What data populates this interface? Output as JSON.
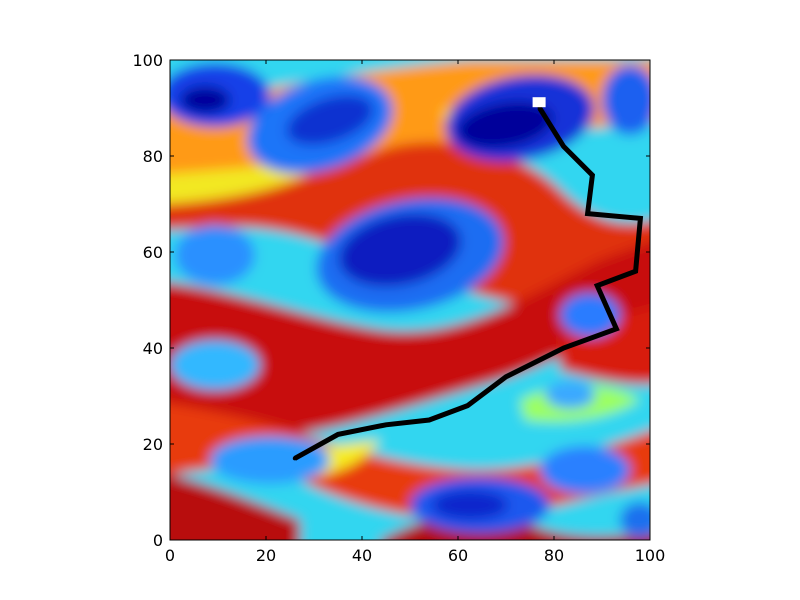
{
  "chart_data": {
    "type": "heatmap",
    "title": "",
    "xlabel": "",
    "ylabel": "",
    "xlim": [
      0,
      100
    ],
    "ylim": [
      0,
      100
    ],
    "colormap": "jet",
    "grid": false,
    "x_ticks": [
      0,
      20,
      40,
      60,
      80,
      100
    ],
    "y_ticks": [
      0,
      20,
      40,
      60,
      80,
      100
    ],
    "path": {
      "color": "#000000",
      "points": [
        [
          26,
          17
        ],
        [
          35,
          22
        ],
        [
          45,
          24
        ],
        [
          54,
          25
        ],
        [
          62,
          28
        ],
        [
          70,
          34
        ],
        [
          82,
          40
        ],
        [
          93,
          44
        ],
        [
          89,
          53
        ],
        [
          97,
          56
        ],
        [
          98,
          67
        ],
        [
          87,
          68
        ],
        [
          88,
          76
        ],
        [
          82,
          82
        ],
        [
          77,
          90
        ]
      ]
    },
    "start_marker": {
      "x": 77,
      "y": 91,
      "color": "#ffffff"
    }
  }
}
